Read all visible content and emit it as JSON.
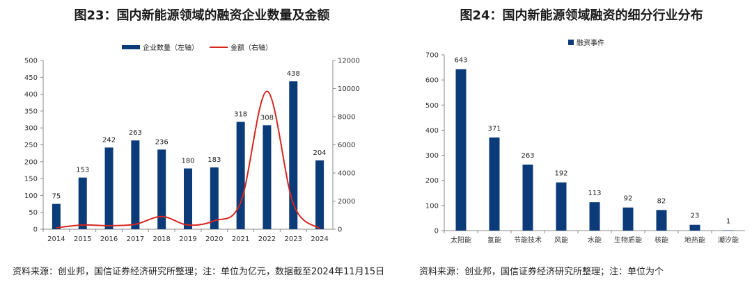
{
  "chart_data": [
    {
      "type": "bar",
      "title": "图23：国内新能源领域的融资企业数量及金额",
      "categories": [
        "2014",
        "2015",
        "2016",
        "2017",
        "2018",
        "2019",
        "2020",
        "2021",
        "2022",
        "2023",
        "2024"
      ],
      "series": [
        {
          "name": "企业数量（左轴）",
          "type": "bar",
          "axis": "left",
          "color": "#0b3b78",
          "values": [
            75,
            153,
            242,
            263,
            236,
            180,
            183,
            318,
            308,
            438,
            204
          ]
        },
        {
          "name": "金额（右轴）",
          "type": "line",
          "axis": "right",
          "color": "#d7261e",
          "values": [
            100,
            300,
            250,
            350,
            900,
            300,
            600,
            1900,
            9800,
            1800,
            50
          ]
        }
      ],
      "data_labels": [
        "75",
        "153",
        "242",
        "263",
        "236",
        "180",
        "183",
        "318",
        "308",
        "438",
        "204"
      ],
      "ylim_left": [
        0,
        500
      ],
      "yticks_left": [
        "0",
        "50",
        "100",
        "150",
        "200",
        "250",
        "300",
        "350",
        "400",
        "450",
        "500"
      ],
      "ylim_right": [
        0,
        12000
      ],
      "yticks_right": [
        "0",
        "2000",
        "4000",
        "6000",
        "8000",
        "10000",
        "12000"
      ],
      "legend_position": "top",
      "grid": false,
      "source": "资料来源：创业邦，国信证券经济研究所整理；注：单位为亿元，数据截至2024年11月15日"
    },
    {
      "type": "bar",
      "title": "图24：国内新能源领域融资的细分行业分布",
      "categories": [
        "太阳能",
        "氢能",
        "节能技术",
        "风能",
        "水能",
        "生物质能",
        "核能",
        "地热能",
        "潮汐能"
      ],
      "series": [
        {
          "name": "融资事件",
          "color": "#0b3b78",
          "values": [
            643,
            371,
            263,
            192,
            113,
            92,
            82,
            23,
            1
          ]
        }
      ],
      "data_labels": [
        "643",
        "371",
        "263",
        "192",
        "113",
        "92",
        "82",
        "23",
        "1"
      ],
      "ylim": [
        0,
        700
      ],
      "yticks": [
        "0",
        "100",
        "200",
        "300",
        "400",
        "500",
        "600",
        "700"
      ],
      "legend_position": "top",
      "grid": false,
      "source": "资料来源：创业邦，国信证券经济研究所整理；注：单位为个"
    }
  ]
}
